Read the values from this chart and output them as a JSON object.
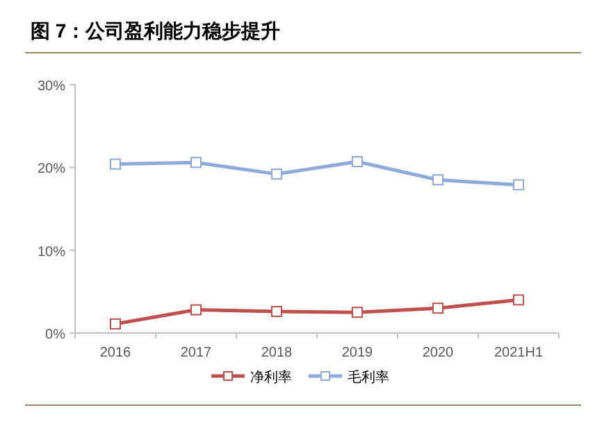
{
  "chart_data": {
    "type": "line",
    "title": "图 7：公司盈利能力稳步提升",
    "categories": [
      "2016",
      "2017",
      "2018",
      "2019",
      "2020",
      "2021H1"
    ],
    "series": [
      {
        "name": "净利率",
        "color": "#c0504d",
        "values": [
          1.1,
          2.8,
          2.6,
          2.5,
          3.0,
          4.0
        ]
      },
      {
        "name": "毛利率",
        "color": "#8eaadb",
        "values": [
          20.4,
          20.6,
          19.2,
          20.7,
          18.5,
          17.9
        ]
      }
    ],
    "ylim": [
      0,
      30
    ],
    "yticks": [
      {
        "value": 0,
        "label": "0%"
      },
      {
        "value": 10,
        "label": "10%"
      },
      {
        "value": 20,
        "label": "20%"
      },
      {
        "value": 30,
        "label": "30%"
      }
    ],
    "grid": false,
    "legend": "bottom",
    "marker": "square",
    "line_style": "solid"
  }
}
